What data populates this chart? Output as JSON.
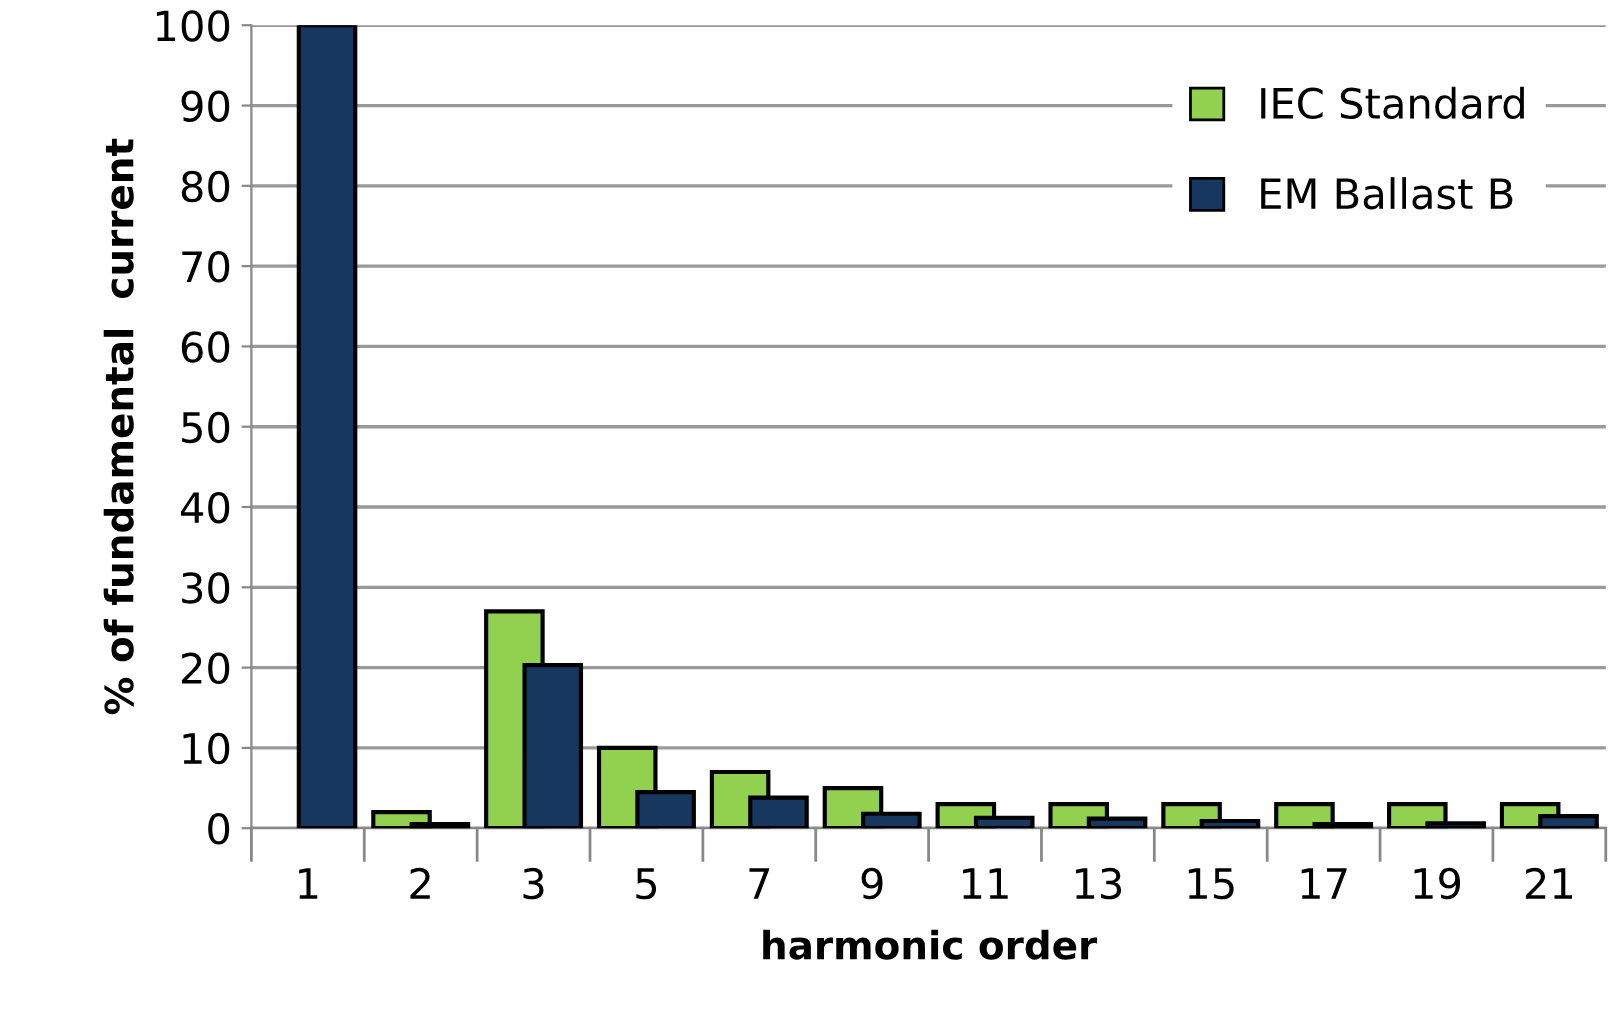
{
  "chart_data": {
    "type": "bar",
    "xlabel": "harmonic order",
    "ylabel": "% of fundamental  current",
    "categories": [
      "1",
      "2",
      "3",
      "5",
      "7",
      "9",
      "11",
      "13",
      "15",
      "17",
      "19",
      "21"
    ],
    "series": [
      {
        "name": "IEC Standard",
        "color": "#92d050",
        "values": [
          null,
          2,
          27,
          10,
          7,
          5,
          3,
          3,
          3,
          3,
          3,
          3
        ]
      },
      {
        "name": "EM Ballast B",
        "color": "#17375e",
        "values": [
          100,
          0.5,
          20.3,
          4.5,
          3.8,
          1.8,
          1.3,
          1.2,
          0.9,
          0.5,
          0.6,
          1.5
        ]
      }
    ],
    "ylim": [
      0,
      100
    ],
    "yticks": [
      0,
      10,
      20,
      30,
      40,
      50,
      60,
      70,
      80,
      90,
      100
    ],
    "grid": "y",
    "legend": "top right"
  }
}
